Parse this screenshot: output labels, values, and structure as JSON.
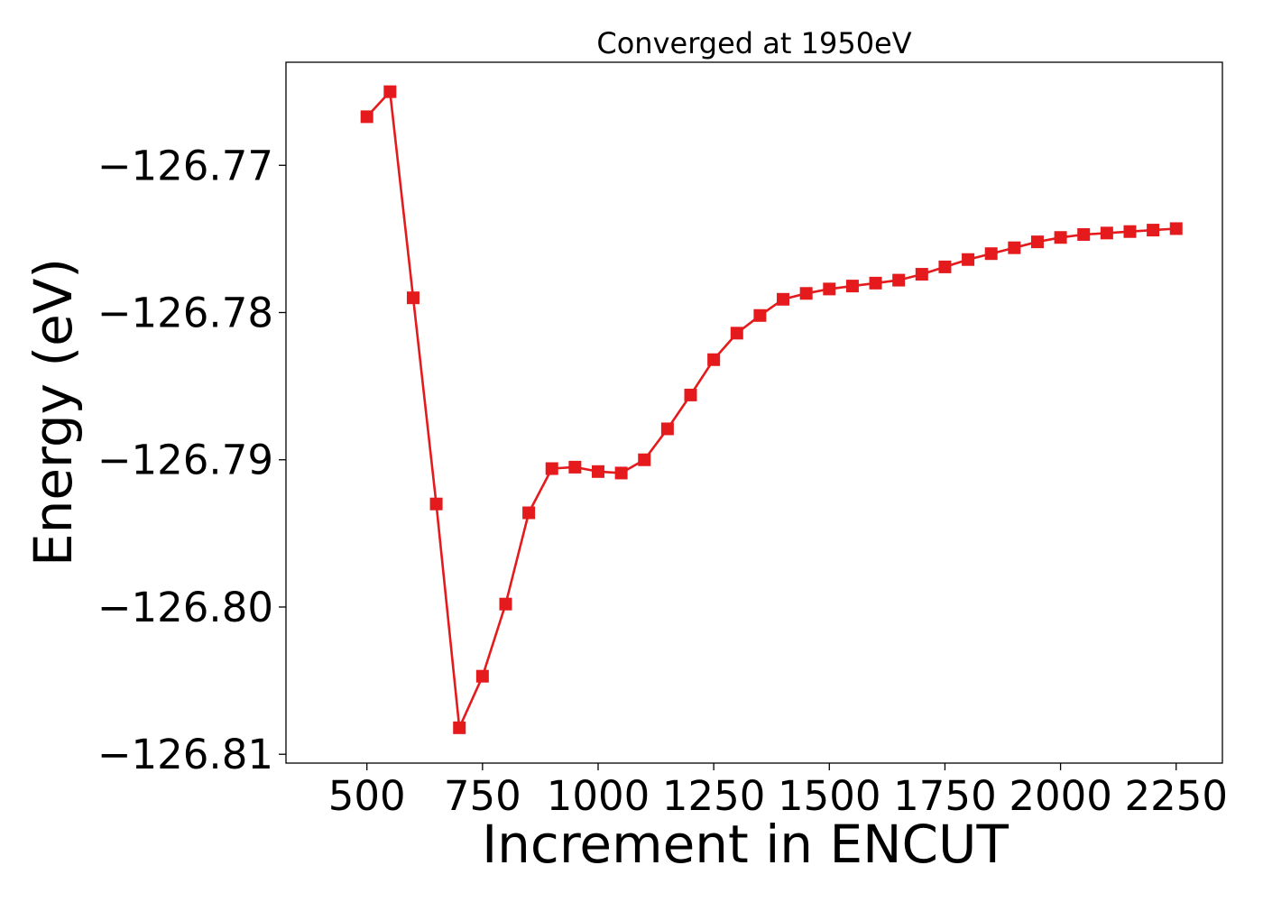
{
  "chart_data": {
    "type": "line",
    "title": "Converged at 1950eV",
    "xlabel": "Increment in ENCUT",
    "ylabel": "Energy (eV)",
    "xlim": [
      325,
      2350
    ],
    "ylim": [
      -126.8106,
      -126.763
    ],
    "x_ticks": [
      500,
      750,
      1000,
      1250,
      1500,
      1750,
      2000,
      2250
    ],
    "x_tick_labels": [
      "500",
      "750",
      "1000",
      "1250",
      "1500",
      "1750",
      "2000",
      "2250"
    ],
    "y_ticks": [
      -126.77,
      -126.78,
      -126.79,
      -126.8,
      -126.81
    ],
    "y_tick_labels": [
      "−126.77",
      "−126.78",
      "−126.79",
      "−126.80",
      "−126.81"
    ],
    "grid": false,
    "series": [
      {
        "color": "#e41a1c",
        "marker": "square",
        "x": [
          500,
          550,
          600,
          650,
          700,
          750,
          800,
          850,
          900,
          950,
          1000,
          1050,
          1100,
          1150,
          1200,
          1250,
          1300,
          1350,
          1400,
          1450,
          1500,
          1550,
          1600,
          1650,
          1700,
          1750,
          1800,
          1850,
          1900,
          1950,
          2000,
          2050,
          2100,
          2150,
          2200,
          2250
        ],
        "y": [
          -126.7667,
          -126.765,
          -126.779,
          -126.793,
          -126.8082,
          -126.8047,
          -126.7998,
          -126.7936,
          -126.7906,
          -126.7905,
          -126.7908,
          -126.7909,
          -126.79,
          -126.7879,
          -126.7856,
          -126.7832,
          -126.7814,
          -126.7802,
          -126.7791,
          -126.7787,
          -126.7784,
          -126.7782,
          -126.778,
          -126.7778,
          -126.7774,
          -126.7769,
          -126.7764,
          -126.776,
          -126.7756,
          -126.7752,
          -126.7749,
          -126.7747,
          -126.7746,
          -126.7745,
          -126.7744,
          -126.7743
        ]
      }
    ]
  }
}
